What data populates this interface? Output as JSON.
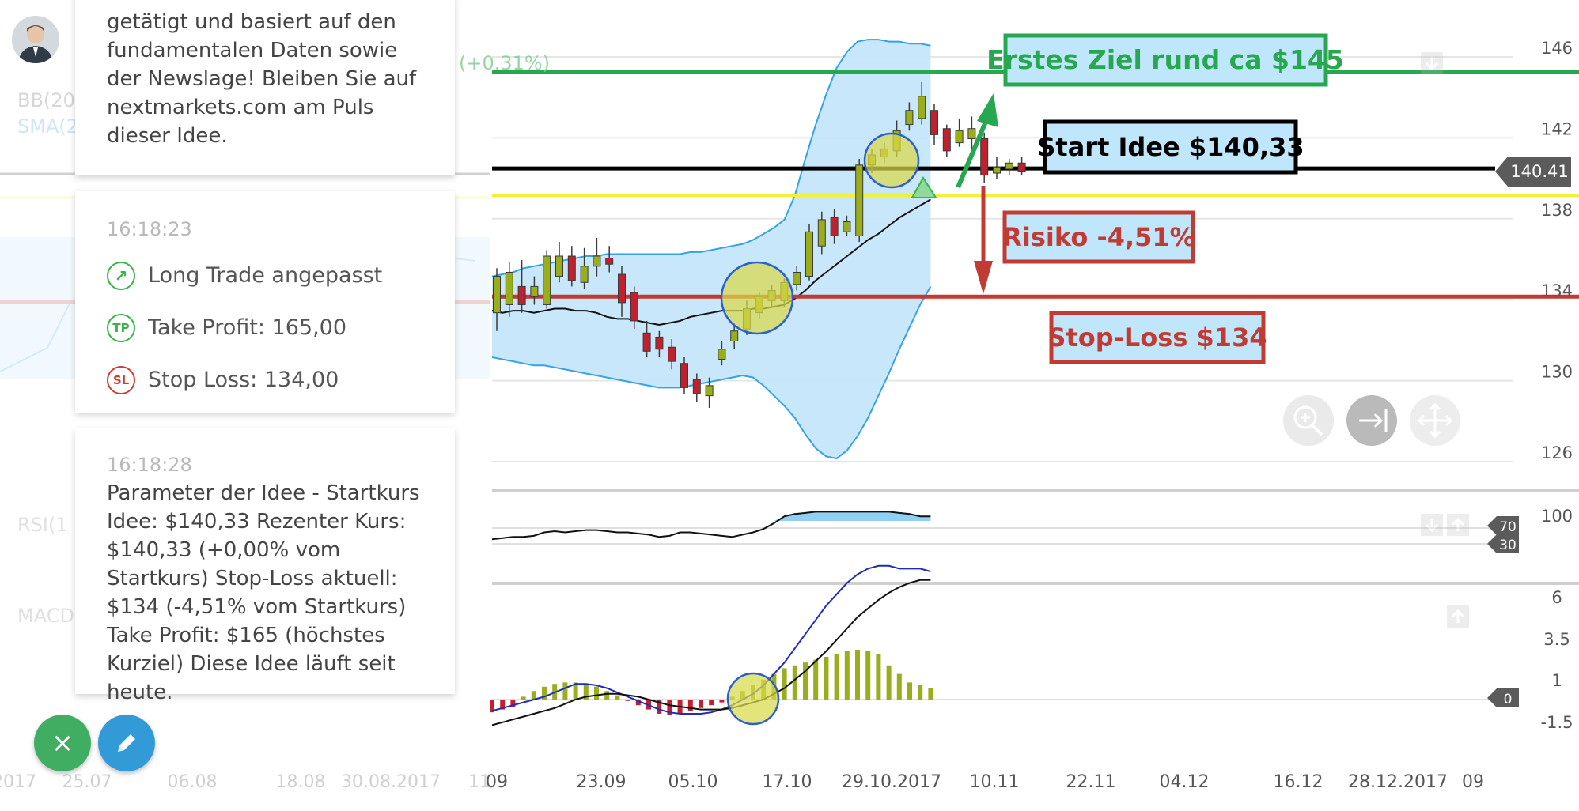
{
  "chart_data": {
    "type": "candlestick",
    "x_ticks": [
      "09",
      "23.09",
      "05.10",
      "17.10",
      "29.10.2017",
      "10.11",
      "22.11",
      "04.12",
      "16.12",
      "28.12.2017",
      "09"
    ],
    "x_ticks_faded": [
      "2017",
      "25.07",
      "06.08",
      "18.08",
      "30.08.2017",
      "11"
    ],
    "price_panel": {
      "y_ticks": [
        146,
        142,
        138,
        134,
        130,
        126
      ],
      "ylim": [
        124.5,
        147.5
      ],
      "current_price_label": "140.41",
      "candles": [
        {
          "o": 133.2,
          "c": 135.0,
          "h": 135.4,
          "l": 132.3
        },
        {
          "o": 133.6,
          "c": 135.2,
          "h": 135.7,
          "l": 133.0
        },
        {
          "o": 134.5,
          "c": 133.6,
          "h": 135.8,
          "l": 133.2
        },
        {
          "o": 134.0,
          "c": 134.5,
          "h": 135.0,
          "l": 133.6
        },
        {
          "o": 133.6,
          "c": 136.0,
          "h": 136.3,
          "l": 133.4
        },
        {
          "o": 135.0,
          "c": 136.0,
          "h": 136.7,
          "l": 134.7
        },
        {
          "o": 136.0,
          "c": 134.8,
          "h": 136.5,
          "l": 134.5
        },
        {
          "o": 134.7,
          "c": 135.5,
          "h": 136.4,
          "l": 134.4
        },
        {
          "o": 135.5,
          "c": 136.0,
          "h": 136.9,
          "l": 135.0
        },
        {
          "o": 135.9,
          "c": 135.6,
          "h": 136.5,
          "l": 135.2
        },
        {
          "o": 135.1,
          "c": 133.7,
          "h": 135.5,
          "l": 133.0
        },
        {
          "o": 134.2,
          "c": 132.8,
          "h": 134.5,
          "l": 132.4
        },
        {
          "o": 132.2,
          "c": 131.3,
          "h": 132.8,
          "l": 131.0
        },
        {
          "o": 132.0,
          "c": 131.4,
          "h": 132.3,
          "l": 131.0
        },
        {
          "o": 131.5,
          "c": 130.8,
          "h": 131.9,
          "l": 130.4
        },
        {
          "o": 130.7,
          "c": 129.5,
          "h": 131.0,
          "l": 129.2
        },
        {
          "o": 129.9,
          "c": 129.2,
          "h": 130.2,
          "l": 128.8
        },
        {
          "o": 129.1,
          "c": 129.6,
          "h": 130.0,
          "l": 128.5
        },
        {
          "o": 130.9,
          "c": 131.4,
          "h": 131.8,
          "l": 130.6
        },
        {
          "o": 131.8,
          "c": 132.3,
          "h": 132.7,
          "l": 131.4
        },
        {
          "o": 132.4,
          "c": 133.4,
          "h": 133.8,
          "l": 132.1
        },
        {
          "o": 133.2,
          "c": 134.0,
          "h": 134.2,
          "l": 132.9
        },
        {
          "o": 133.8,
          "c": 134.3,
          "h": 134.6,
          "l": 133.5
        },
        {
          "o": 133.8,
          "c": 134.7,
          "h": 134.9,
          "l": 133.5
        },
        {
          "o": 134.6,
          "c": 135.2,
          "h": 135.5,
          "l": 134.3
        },
        {
          "o": 135.0,
          "c": 137.2,
          "h": 137.6,
          "l": 134.8
        },
        {
          "o": 136.5,
          "c": 137.8,
          "h": 138.2,
          "l": 136.1
        },
        {
          "o": 137.9,
          "c": 137.0,
          "h": 138.3,
          "l": 136.6
        },
        {
          "o": 137.2,
          "c": 137.7,
          "h": 138.0,
          "l": 137.0
        },
        {
          "o": 137.0,
          "c": 140.5,
          "h": 140.8,
          "l": 136.7
        },
        {
          "o": 140.5,
          "c": 141.0,
          "h": 141.3,
          "l": 140.1
        },
        {
          "o": 140.9,
          "c": 141.3,
          "h": 141.6,
          "l": 140.6
        },
        {
          "o": 141.2,
          "c": 142.2,
          "h": 142.7,
          "l": 140.9
        },
        {
          "o": 142.5,
          "c": 143.2,
          "h": 143.6,
          "l": 142.2
        },
        {
          "o": 142.8,
          "c": 143.9,
          "h": 144.6,
          "l": 142.5
        },
        {
          "o": 143.2,
          "c": 142.0,
          "h": 143.5,
          "l": 141.5
        },
        {
          "o": 142.3,
          "c": 141.2,
          "h": 142.5,
          "l": 140.9
        },
        {
          "o": 141.6,
          "c": 142.2,
          "h": 142.8,
          "l": 141.4
        },
        {
          "o": 141.8,
          "c": 142.3,
          "h": 142.9,
          "l": 141.3
        },
        {
          "o": 141.8,
          "c": 140.0,
          "h": 142.1,
          "l": 139.6
        },
        {
          "o": 140.1,
          "c": 140.4,
          "h": 140.9,
          "l": 139.8
        },
        {
          "o": 140.3,
          "c": 140.6,
          "h": 140.8,
          "l": 140.0
        },
        {
          "o": 140.6,
          "c": 140.2,
          "h": 140.9,
          "l": 140.0
        }
      ],
      "bollinger_upper": [
        135.0,
        135.1,
        135.2,
        135.4,
        135.5,
        135.6,
        135.7,
        135.8,
        135.9,
        136.0,
        136.0,
        136.1,
        136.1,
        136.1,
        136.1,
        136.1,
        136.1,
        136.1,
        136.1,
        136.2,
        136.2,
        136.3,
        136.4,
        136.5,
        136.6,
        136.8,
        137.1,
        137.4,
        137.8,
        139.0,
        140.8,
        142.5,
        144.0,
        145.3,
        146.1,
        146.6,
        146.7,
        146.7,
        146.6,
        146.6,
        146.5,
        146.5,
        146.4
      ],
      "bollinger_lower": [
        131.0,
        130.9,
        130.8,
        130.7,
        130.6,
        130.6,
        130.5,
        130.4,
        130.3,
        130.2,
        130.1,
        130.0,
        129.9,
        129.8,
        129.7,
        129.6,
        129.5,
        129.5,
        129.5,
        129.6,
        129.7,
        129.8,
        129.9,
        130.0,
        130.1,
        130.0,
        129.6,
        129.1,
        128.6,
        128.0,
        127.2,
        126.5,
        126.1,
        126.0,
        126.4,
        127.1,
        128.0,
        129.1,
        130.2,
        131.4,
        132.5,
        133.6,
        134.5
      ],
      "sma": [
        133.3,
        133.2,
        133.3,
        133.3,
        133.2,
        133.3,
        133.4,
        133.4,
        133.3,
        133.3,
        133.2,
        133.0,
        132.9,
        132.9,
        132.8,
        132.7,
        132.6,
        132.7,
        132.8,
        133.0,
        133.1,
        133.2,
        133.3,
        133.3,
        133.3,
        133.4,
        133.4,
        133.5,
        133.6,
        133.9,
        134.3,
        134.8,
        135.2,
        135.6,
        136.0,
        136.4,
        136.8,
        137.1,
        137.5,
        137.9,
        138.2,
        138.5,
        138.8
      ]
    },
    "annotations": {
      "target_label": "Erstes Ziel rund ca $145",
      "start_label": "Start Idee $140,33",
      "risk_label": "Risiko -4,51%",
      "stop_label": "Stop-Loss $134",
      "faded_percent": "(+0.31%)",
      "lines": {
        "target": 145.1,
        "start": 140.33,
        "yellow": 139.0,
        "stop": 134.0
      }
    },
    "rsi_panel": {
      "y_ticks": [
        "100"
      ],
      "level_badges": [
        "70",
        "30"
      ],
      "values": [
        54,
        55,
        56,
        56,
        57,
        60,
        61,
        60,
        61,
        62,
        62,
        61,
        60,
        60,
        59,
        58,
        56,
        57,
        60,
        60,
        59,
        58,
        57,
        56,
        58,
        60,
        63,
        68,
        74,
        76,
        77,
        78,
        78,
        78,
        78,
        78,
        78,
        78,
        78,
        77,
        76,
        74,
        74
      ]
    },
    "macd_panel": {
      "y_ticks": [
        "6",
        "3.5",
        "1",
        "-1.5"
      ],
      "zero_badge": "0",
      "macd_line": [
        -0.4,
        -0.3,
        -0.2,
        -0.1,
        0.0,
        0.1,
        0.25,
        0.4,
        0.55,
        0.55,
        0.5,
        0.4,
        0.25,
        0.1,
        -0.05,
        -0.2,
        -0.35,
        -0.45,
        -0.5,
        -0.5,
        -0.5,
        -0.45,
        -0.35,
        -0.2,
        0.0,
        0.2,
        0.5,
        0.9,
        1.3,
        1.8,
        2.3,
        2.8,
        3.3,
        3.7,
        4.1,
        4.4,
        4.6,
        4.7,
        4.7,
        4.6,
        4.6,
        4.6,
        4.5
      ],
      "signal_line": [
        -0.9,
        -0.8,
        -0.7,
        -0.6,
        -0.5,
        -0.4,
        -0.3,
        -0.15,
        0.0,
        0.1,
        0.15,
        0.2,
        0.2,
        0.15,
        0.1,
        0.0,
        -0.1,
        -0.2,
        -0.25,
        -0.3,
        -0.35,
        -0.35,
        -0.35,
        -0.3,
        -0.2,
        -0.1,
        0.0,
        0.2,
        0.4,
        0.7,
        1.0,
        1.35,
        1.7,
        2.1,
        2.5,
        2.9,
        3.2,
        3.5,
        3.75,
        3.95,
        4.1,
        4.2,
        4.2
      ],
      "histogram": [
        -0.45,
        -0.35,
        -0.25,
        0.1,
        0.3,
        0.45,
        0.55,
        0.6,
        0.6,
        0.55,
        0.45,
        0.3,
        0.15,
        -0.05,
        -0.2,
        -0.35,
        -0.5,
        -0.55,
        -0.5,
        -0.4,
        -0.3,
        -0.2,
        -0.1,
        0.1,
        0.3,
        0.5,
        0.7,
        0.9,
        1.1,
        1.2,
        1.3,
        1.4,
        1.5,
        1.6,
        1.7,
        1.75,
        1.7,
        1.6,
        1.2,
        0.9,
        0.6,
        0.5,
        0.4
      ]
    }
  },
  "sidebar": {
    "intro_text": "getätigt und basiert auf den fundamentalen Daten sowie der Newslage! Bleiben Sie auf nextmarkets.com am Puls dieser Idee.",
    "card1": {
      "time": "16:18:23",
      "rows": [
        {
          "icon": "arrow-up-right-icon",
          "icon_text": "↗",
          "label": "Long Trade angepasst"
        },
        {
          "icon": "take-profit-icon",
          "icon_text": "TP",
          "label": "Take Profit: 165,00"
        },
        {
          "icon": "stop-loss-icon",
          "icon_text": "SL",
          "label": "Stop Loss: 134,00"
        }
      ]
    },
    "card2": {
      "time": "16:18:28",
      "text": "Parameter der Idee - Startkurs Idee: $140,33 Rezenter Kurs: $140,33 (+0,00% vom Startkurs) Stop-Loss aktuell: $134 (-4,51% vom Startkurs) Take Profit: $165 (höchstes Kurziel) Diese Idee läuft seit heute."
    }
  },
  "faded_labels": {
    "bb": "BB(20",
    "sma": "SMA(2",
    "rsi": "RSI(1",
    "macd": "MACD"
  },
  "buttons": {
    "close_icon": "×",
    "edit_icon": "pencil-icon"
  },
  "colors": {
    "bull": "#9aad1b",
    "bear": "#c0212e",
    "band_fill": "#c6e6fb",
    "band_line": "#35a3e6",
    "target_green": "#27a850",
    "stop_red": "#c03b33",
    "start_black": "#000000",
    "yellow": "#f3f03a",
    "label_fill": "#bfe6fa",
    "fab_green": "#3fae63",
    "fab_blue": "#339ad8"
  }
}
